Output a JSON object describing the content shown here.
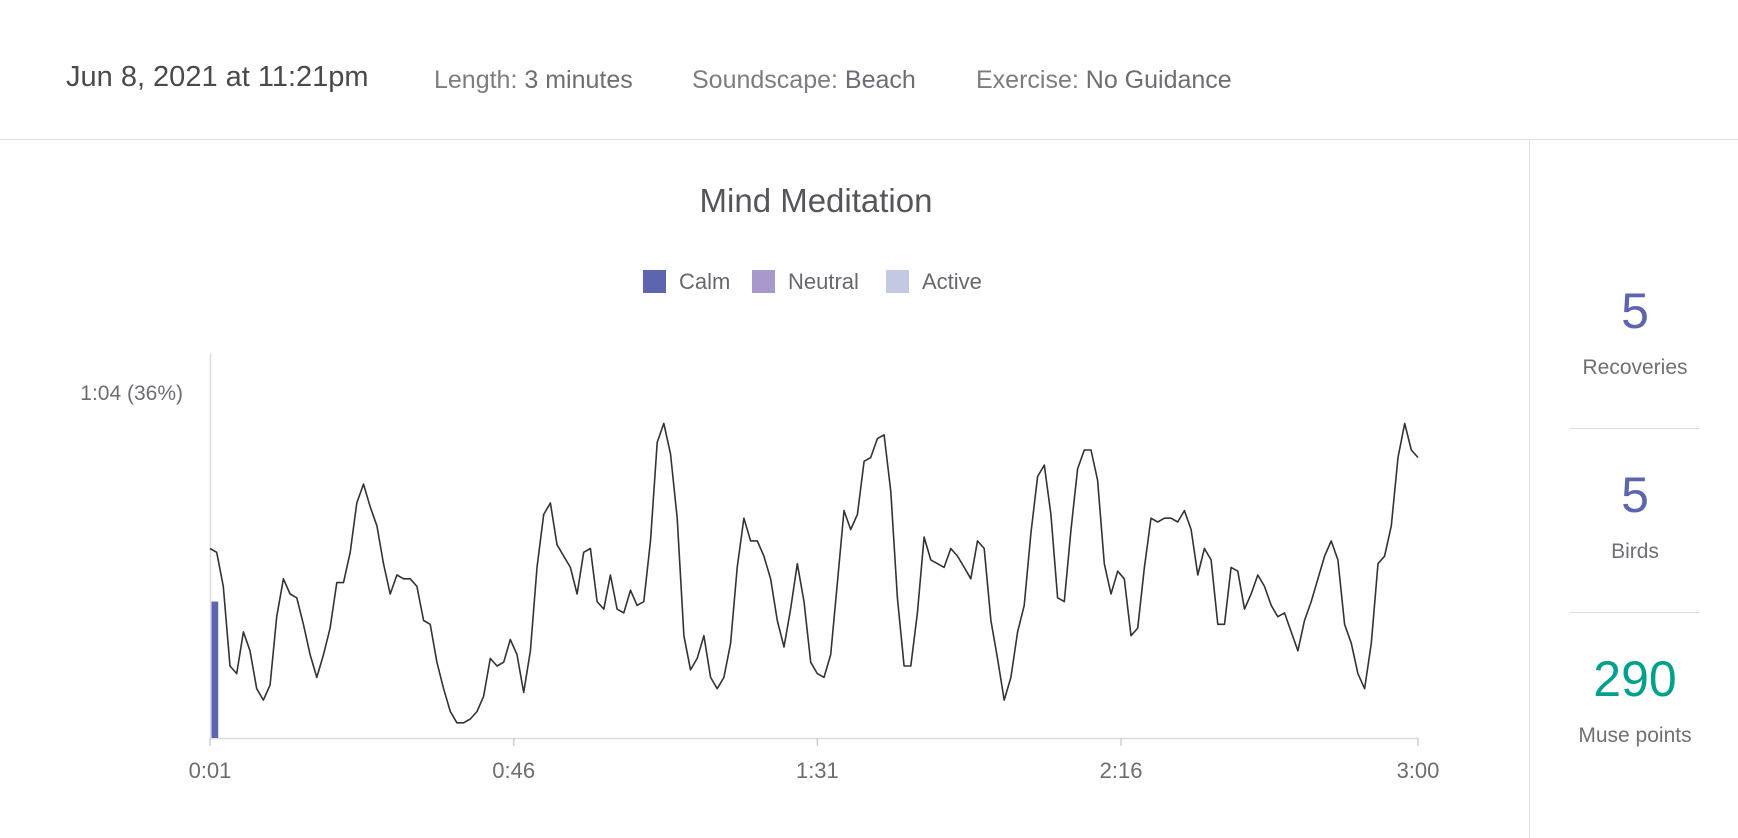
{
  "header": {
    "date": "Jun 8, 2021 at 11:21pm",
    "length_label": "Length:",
    "length_value": "3 minutes",
    "soundscape_label": "Soundscape:",
    "soundscape_value": "Beach",
    "exercise_label": "Exercise:",
    "exercise_value": "No Guidance"
  },
  "stats": {
    "recoveries": {
      "value": "5",
      "label": "Recoveries"
    },
    "birds": {
      "value": "5",
      "label": "Birds"
    },
    "points": {
      "value": "290",
      "label": "Muse points"
    }
  },
  "colors": {
    "calm": "#5c65ad",
    "neutral": "#a898cc",
    "active": "#c3c8e3",
    "points": "#00a08c",
    "line": "#333333"
  },
  "chart_data": {
    "type": "line",
    "title": "Mind Meditation",
    "legend": [
      "Calm",
      "Neutral",
      "Active"
    ],
    "legend_position": "top-center",
    "y_annotation": "1:04 (36%)",
    "x_ticks": [
      {
        "label": "0:01",
        "value": 1
      },
      {
        "label": "0:46",
        "value": 46
      },
      {
        "label": "1:31",
        "value": 91
      },
      {
        "label": "2:16",
        "value": 136
      },
      {
        "label": "3:00",
        "value": 180
      }
    ],
    "xlim": [
      1,
      180
    ],
    "ylim": [
      0,
      1
    ],
    "grid": false,
    "state_bars": [
      {
        "state": "Calm",
        "start": 1,
        "end": 2,
        "level": 0.36
      }
    ],
    "series": [
      {
        "values": [
          0.5,
          0.49,
          0.4,
          0.19,
          0.17,
          0.28,
          0.23,
          0.13,
          0.1,
          0.14,
          0.32,
          0.42,
          0.38,
          0.37,
          0.3,
          0.22,
          0.16,
          0.22,
          0.29,
          0.41,
          0.41,
          0.49,
          0.62,
          0.67,
          0.61,
          0.56,
          0.46,
          0.38,
          0.43,
          0.42,
          0.42,
          0.4,
          0.31,
          0.3,
          0.2,
          0.13,
          0.07,
          0.04,
          0.04,
          0.05,
          0.07,
          0.11,
          0.21,
          0.19,
          0.2,
          0.26,
          0.22,
          0.12,
          0.23,
          0.45,
          0.59,
          0.62,
          0.51,
          0.48,
          0.45,
          0.38,
          0.49,
          0.5,
          0.36,
          0.34,
          0.43,
          0.34,
          0.33,
          0.39,
          0.35,
          0.36,
          0.52,
          0.78,
          0.83,
          0.75,
          0.58,
          0.27,
          0.18,
          0.21,
          0.27,
          0.16,
          0.13,
          0.16,
          0.25,
          0.45,
          0.58,
          0.52,
          0.52,
          0.48,
          0.42,
          0.31,
          0.24,
          0.34,
          0.46,
          0.36,
          0.2,
          0.17,
          0.16,
          0.22,
          0.41,
          0.6,
          0.55,
          0.59,
          0.73,
          0.74,
          0.79,
          0.8,
          0.65,
          0.37,
          0.19,
          0.19,
          0.33,
          0.53,
          0.47,
          0.46,
          0.45,
          0.5,
          0.48,
          0.45,
          0.42,
          0.52,
          0.5,
          0.31,
          0.21,
          0.1,
          0.16,
          0.28,
          0.35,
          0.54,
          0.69,
          0.72,
          0.59,
          0.37,
          0.36,
          0.55,
          0.71,
          0.76,
          0.76,
          0.68,
          0.46,
          0.38,
          0.44,
          0.42,
          0.27,
          0.29,
          0.45,
          0.58,
          0.57,
          0.58,
          0.58,
          0.57,
          0.6,
          0.55,
          0.43,
          0.5,
          0.47,
          0.3,
          0.3,
          0.45,
          0.44,
          0.34,
          0.38,
          0.43,
          0.4,
          0.35,
          0.32,
          0.33,
          0.28,
          0.23,
          0.31,
          0.36,
          0.42,
          0.48,
          0.52,
          0.47,
          0.3,
          0.25,
          0.17,
          0.13,
          0.25,
          0.46,
          0.48,
          0.56,
          0.74,
          0.83,
          0.76,
          0.74
        ]
      }
    ]
  }
}
